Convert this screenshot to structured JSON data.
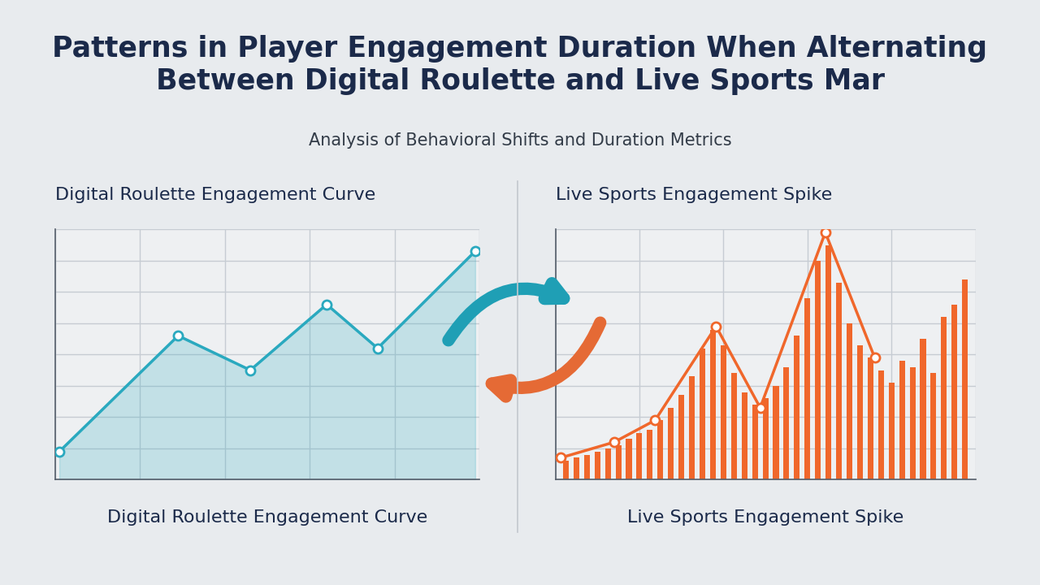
{
  "title": "Patterns in Player Engagement Duration When Alternating Between Digital Roulette and Live Sports Mar",
  "subtitle": "Analysis of Behavioral Shifts and Duration Metrics",
  "chart_data": [
    {
      "type": "area",
      "title": "Digital Roulette Engagement Curve",
      "xlabel": "Digital Roulette Engagement Curve",
      "x": [
        0.1,
        2.9,
        4.6,
        6.4,
        7.6,
        9.9
      ],
      "values": [
        0.9,
        4.6,
        3.5,
        5.6,
        4.2,
        7.3
      ],
      "color": "#2aa9bf",
      "marker": "o",
      "xlim": [
        0,
        10
      ],
      "xticks": [
        0,
        2,
        4,
        6,
        8,
        10
      ],
      "ylim": [
        0,
        8
      ],
      "yticks": [
        0,
        1,
        2,
        3,
        4,
        5,
        6,
        7,
        8
      ],
      "grid": true,
      "tick_labels": false
    },
    {
      "type": "bar",
      "title": "Live Sports Engagement Spike",
      "xlabel": "Live Sports Engagement Spike",
      "series": [
        {
          "type": "bar",
          "color": "#f0672b",
          "x": [
            1,
            2,
            3,
            4,
            5,
            6,
            7,
            8,
            9,
            10,
            11,
            12,
            13,
            14,
            15,
            16,
            17,
            18,
            19,
            20,
            21,
            22,
            23,
            24,
            25,
            26,
            27,
            28,
            29,
            30,
            31,
            32,
            33,
            34,
            35,
            36,
            37,
            38,
            39
          ],
          "values": [
            0.6,
            0.7,
            0.8,
            0.9,
            1.0,
            1.1,
            1.3,
            1.5,
            1.6,
            1.9,
            2.3,
            2.7,
            3.3,
            4.2,
            4.8,
            4.3,
            3.4,
            2.8,
            2.4,
            2.6,
            3.0,
            3.6,
            4.6,
            5.8,
            7.0,
            7.5,
            6.3,
            5.0,
            4.3,
            3.9,
            3.5,
            3.1,
            3.8,
            3.6,
            4.5,
            3.4,
            5.2,
            5.6,
            6.4
          ]
        },
        {
          "type": "line",
          "color": "#f0672b",
          "marker": "o",
          "x": [
            0.5,
            5.6,
            9.5,
            15.3,
            19.5,
            25.7,
            30.4
          ],
          "values": [
            0.7,
            1.2,
            1.9,
            4.9,
            2.3,
            7.9,
            3.9
          ]
        }
      ],
      "xlim": [
        0,
        40
      ],
      "xticks": [
        0,
        8,
        16,
        24,
        32,
        40
      ],
      "ylim": [
        0,
        8
      ],
      "yticks": [
        0,
        1,
        2,
        3,
        4,
        5,
        6,
        7,
        8
      ],
      "grid": true,
      "tick_labels": false
    }
  ]
}
